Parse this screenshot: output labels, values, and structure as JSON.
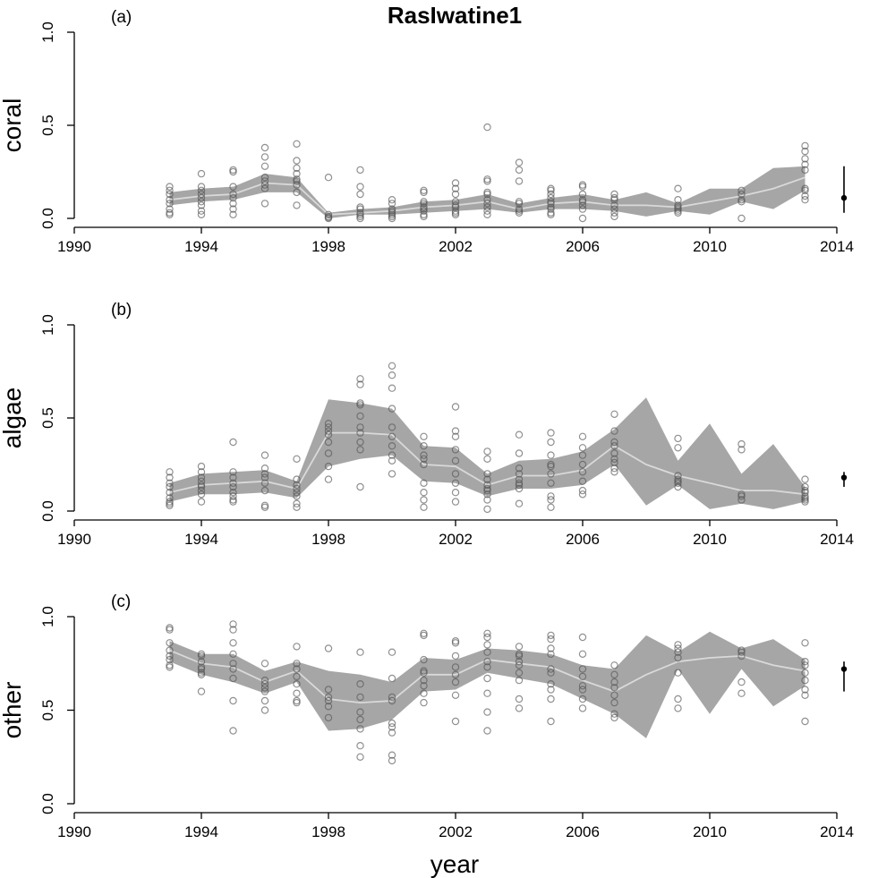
{
  "chart_data": {
    "type": "scatter",
    "title": "RasIwatine1",
    "xlabel": "year",
    "xlim": [
      1990,
      2014
    ],
    "xticks": [
      1990,
      1994,
      1998,
      2002,
      2006,
      2010,
      2014
    ],
    "yticks": [
      "0.0",
      "0.5",
      "1.0"
    ],
    "ylim": [
      0,
      1
    ],
    "panels": [
      {
        "label": "(a)",
        "ylabel": "coral",
        "band": {
          "x": [
            1993,
            1994,
            1995,
            1996,
            1997,
            1998,
            1999,
            2000,
            2001,
            2002,
            2003,
            2004,
            2005,
            2006,
            2007,
            2008,
            2009,
            2010,
            2011,
            2012,
            2013
          ],
          "lower": [
            0.07,
            0.09,
            0.1,
            0.14,
            0.14,
            0.0,
            0.02,
            0.02,
            0.03,
            0.04,
            0.05,
            0.03,
            0.05,
            0.05,
            0.04,
            0.01,
            0.04,
            0.02,
            0.09,
            0.05,
            0.15
          ],
          "upper": [
            0.14,
            0.16,
            0.17,
            0.24,
            0.22,
            0.03,
            0.05,
            0.06,
            0.09,
            0.1,
            0.13,
            0.08,
            0.11,
            0.13,
            0.1,
            0.14,
            0.08,
            0.16,
            0.16,
            0.27,
            0.28
          ],
          "mean": [
            0.1,
            0.12,
            0.13,
            0.19,
            0.18,
            0.02,
            0.03,
            0.04,
            0.06,
            0.07,
            0.09,
            0.05,
            0.08,
            0.09,
            0.07,
            0.07,
            0.06,
            0.09,
            0.12,
            0.16,
            0.22
          ]
        },
        "points": {
          "1993": [
            0.17,
            0.15,
            0.13,
            0.1,
            0.08,
            0.05,
            0.03,
            0.02
          ],
          "1994": [
            0.24,
            0.17,
            0.15,
            0.13,
            0.11,
            0.09,
            0.07,
            0.04,
            0.02
          ],
          "1995": [
            0.26,
            0.25,
            0.17,
            0.13,
            0.11,
            0.08,
            0.05,
            0.02
          ],
          "1996": [
            0.38,
            0.33,
            0.28,
            0.22,
            0.2,
            0.18,
            0.16,
            0.08
          ],
          "1997": [
            0.4,
            0.31,
            0.27,
            0.24,
            0.21,
            0.2,
            0.18,
            0.14,
            0.07
          ],
          "1998": [
            0.22,
            0.02,
            0.01,
            0.005,
            0.0
          ],
          "1999": [
            0.26,
            0.17,
            0.13,
            0.06,
            0.05,
            0.03,
            0.02,
            0.01,
            0.0
          ],
          "2000": [
            0.1,
            0.08,
            0.05,
            0.04,
            0.03,
            0.02,
            0.01,
            0.0
          ],
          "2001": [
            0.15,
            0.14,
            0.09,
            0.08,
            0.06,
            0.05,
            0.04,
            0.02,
            0.01
          ],
          "2002": [
            0.19,
            0.16,
            0.13,
            0.09,
            0.07,
            0.06,
            0.04,
            0.03,
            0.02
          ],
          "2003": [
            0.49,
            0.21,
            0.2,
            0.14,
            0.13,
            0.1,
            0.08,
            0.06,
            0.04,
            0.02
          ],
          "2004": [
            0.3,
            0.26,
            0.2,
            0.09,
            0.08,
            0.05,
            0.04,
            0.03
          ],
          "2005": [
            0.16,
            0.15,
            0.13,
            0.11,
            0.09,
            0.08,
            0.06,
            0.05,
            0.03,
            0.02
          ],
          "2006": [
            0.18,
            0.17,
            0.13,
            0.1,
            0.09,
            0.07,
            0.05,
            0.0
          ],
          "2007": [
            0.13,
            0.11,
            0.1,
            0.07,
            0.05,
            0.03,
            0.01
          ],
          "2009": [
            0.16,
            0.1,
            0.07,
            0.06,
            0.05,
            0.04,
            0.03
          ],
          "2011": [
            0.15,
            0.13,
            0.1,
            0.09,
            0.0
          ],
          "2013": [
            0.39,
            0.36,
            0.32,
            0.29,
            0.26,
            0.16,
            0.15,
            0.12,
            0.1
          ]
        },
        "errorbar": {
          "center": 0.11,
          "low": 0.03,
          "high": 0.28
        }
      },
      {
        "label": "(b)",
        "ylabel": "algae",
        "band": {
          "x": [
            1993,
            1994,
            1995,
            1996,
            1997,
            1998,
            1999,
            2000,
            2001,
            2002,
            2003,
            2004,
            2005,
            2006,
            2007,
            2008,
            2009,
            2010,
            2011,
            2012,
            2013
          ],
          "lower": [
            0.05,
            0.09,
            0.09,
            0.1,
            0.07,
            0.24,
            0.28,
            0.3,
            0.16,
            0.15,
            0.08,
            0.12,
            0.12,
            0.14,
            0.25,
            0.03,
            0.14,
            0.01,
            0.04,
            0.01,
            0.05
          ],
          "upper": [
            0.15,
            0.2,
            0.21,
            0.22,
            0.16,
            0.6,
            0.58,
            0.55,
            0.35,
            0.34,
            0.2,
            0.27,
            0.28,
            0.32,
            0.44,
            0.61,
            0.27,
            0.47,
            0.2,
            0.36,
            0.13
          ],
          "mean": [
            0.1,
            0.14,
            0.15,
            0.16,
            0.12,
            0.42,
            0.42,
            0.41,
            0.25,
            0.24,
            0.14,
            0.19,
            0.19,
            0.22,
            0.35,
            0.25,
            0.19,
            0.15,
            0.11,
            0.11,
            0.09
          ]
        },
        "points": {
          "1993": [
            0.21,
            0.18,
            0.15,
            0.13,
            0.1,
            0.07,
            0.05,
            0.04,
            0.03
          ],
          "1994": [
            0.24,
            0.21,
            0.18,
            0.16,
            0.14,
            0.13,
            0.11,
            0.09,
            0.05
          ],
          "1995": [
            0.37,
            0.21,
            0.18,
            0.15,
            0.13,
            0.1,
            0.08,
            0.06,
            0.05
          ],
          "1996": [
            0.3,
            0.23,
            0.2,
            0.18,
            0.15,
            0.11,
            0.03,
            0.02
          ],
          "1997": [
            0.28,
            0.17,
            0.14,
            0.12,
            0.1,
            0.08,
            0.04,
            0.02
          ],
          "1998": [
            0.47,
            0.45,
            0.43,
            0.41,
            0.37,
            0.31,
            0.24,
            0.17
          ],
          "1999": [
            0.71,
            0.68,
            0.58,
            0.57,
            0.51,
            0.45,
            0.42,
            0.37,
            0.33,
            0.13
          ],
          "2000": [
            0.78,
            0.73,
            0.66,
            0.55,
            0.45,
            0.4,
            0.35,
            0.3,
            0.27,
            0.2
          ],
          "2001": [
            0.4,
            0.35,
            0.3,
            0.28,
            0.25,
            0.15,
            0.1,
            0.06,
            0.02
          ],
          "2002": [
            0.56,
            0.43,
            0.4,
            0.33,
            0.27,
            0.2,
            0.15,
            0.1,
            0.05
          ],
          "2003": [
            0.32,
            0.28,
            0.2,
            0.17,
            0.14,
            0.12,
            0.11,
            0.09,
            0.06,
            0.01
          ],
          "2004": [
            0.41,
            0.31,
            0.23,
            0.2,
            0.17,
            0.15,
            0.14,
            0.12,
            0.04
          ],
          "2005": [
            0.42,
            0.37,
            0.3,
            0.25,
            0.24,
            0.2,
            0.15,
            0.08,
            0.06,
            0.02
          ],
          "2006": [
            0.4,
            0.34,
            0.3,
            0.25,
            0.21,
            0.16,
            0.11,
            0.09
          ],
          "2007": [
            0.52,
            0.43,
            0.37,
            0.35,
            0.31,
            0.28,
            0.26,
            0.23,
            0.21
          ],
          "2009": [
            0.39,
            0.34,
            0.19,
            0.17,
            0.16,
            0.15,
            0.13
          ],
          "2011": [
            0.36,
            0.33,
            0.09,
            0.08,
            0.06
          ],
          "2013": [
            0.17,
            0.13,
            0.11,
            0.1,
            0.08,
            0.07,
            0.06,
            0.05
          ]
        },
        "errorbar": {
          "center": 0.18,
          "low": 0.13,
          "high": 0.21
        }
      },
      {
        "label": "(c)",
        "ylabel": "other",
        "band": {
          "x": [
            1993,
            1994,
            1995,
            1996,
            1997,
            1998,
            1999,
            2000,
            2001,
            2002,
            2003,
            2004,
            2005,
            2006,
            2007,
            2008,
            2009,
            2010,
            2011,
            2012,
            2013
          ],
          "lower": [
            0.76,
            0.69,
            0.65,
            0.59,
            0.65,
            0.39,
            0.4,
            0.45,
            0.6,
            0.61,
            0.7,
            0.67,
            0.64,
            0.56,
            0.48,
            0.35,
            0.72,
            0.48,
            0.72,
            0.52,
            0.63
          ],
          "upper": [
            0.87,
            0.8,
            0.8,
            0.71,
            0.76,
            0.71,
            0.69,
            0.65,
            0.78,
            0.77,
            0.83,
            0.82,
            0.8,
            0.74,
            0.72,
            0.9,
            0.81,
            0.92,
            0.83,
            0.88,
            0.77
          ],
          "mean": [
            0.82,
            0.75,
            0.73,
            0.65,
            0.71,
            0.56,
            0.54,
            0.55,
            0.69,
            0.69,
            0.77,
            0.75,
            0.73,
            0.66,
            0.6,
            0.69,
            0.76,
            0.78,
            0.79,
            0.74,
            0.71
          ]
        },
        "points": {
          "1993": [
            0.94,
            0.93,
            0.86,
            0.82,
            0.79,
            0.77,
            0.74,
            0.73
          ],
          "1994": [
            0.8,
            0.79,
            0.76,
            0.73,
            0.72,
            0.7,
            0.69,
            0.6
          ],
          "1995": [
            0.96,
            0.93,
            0.86,
            0.8,
            0.75,
            0.72,
            0.67,
            0.55,
            0.39
          ],
          "1996": [
            0.75,
            0.66,
            0.64,
            0.62,
            0.6,
            0.55,
            0.5
          ],
          "1997": [
            0.84,
            0.75,
            0.72,
            0.68,
            0.64,
            0.59,
            0.55,
            0.54
          ],
          "1998": [
            0.83,
            0.61,
            0.57,
            0.55,
            0.52,
            0.46
          ],
          "1999": [
            0.81,
            0.64,
            0.57,
            0.49,
            0.45,
            0.4,
            0.31,
            0.25
          ],
          "2000": [
            0.81,
            0.67,
            0.57,
            0.55,
            0.43,
            0.41,
            0.38,
            0.26,
            0.23
          ],
          "2001": [
            0.91,
            0.9,
            0.77,
            0.71,
            0.7,
            0.66,
            0.63,
            0.59,
            0.54
          ],
          "2002": [
            0.87,
            0.86,
            0.79,
            0.73,
            0.69,
            0.65,
            0.58,
            0.44
          ],
          "2003": [
            0.91,
            0.89,
            0.85,
            0.81,
            0.76,
            0.73,
            0.67,
            0.59,
            0.49,
            0.39
          ],
          "2004": [
            0.84,
            0.8,
            0.79,
            0.76,
            0.74,
            0.7,
            0.66,
            0.56,
            0.51
          ],
          "2005": [
            0.9,
            0.88,
            0.83,
            0.8,
            0.72,
            0.7,
            0.64,
            0.61,
            0.56,
            0.44
          ],
          "2006": [
            0.89,
            0.8,
            0.72,
            0.68,
            0.63,
            0.61,
            0.56,
            0.51
          ],
          "2007": [
            0.74,
            0.69,
            0.65,
            0.62,
            0.58,
            0.54,
            0.48,
            0.46
          ],
          "2009": [
            0.85,
            0.83,
            0.81,
            0.78,
            0.7,
            0.56,
            0.51
          ],
          "2011": [
            0.82,
            0.81,
            0.79,
            0.65,
            0.59
          ],
          "2013": [
            0.86,
            0.76,
            0.74,
            0.7,
            0.66,
            0.61,
            0.58,
            0.44
          ]
        },
        "errorbar": {
          "center": 0.72,
          "low": 0.6,
          "high": 0.76
        }
      }
    ]
  }
}
